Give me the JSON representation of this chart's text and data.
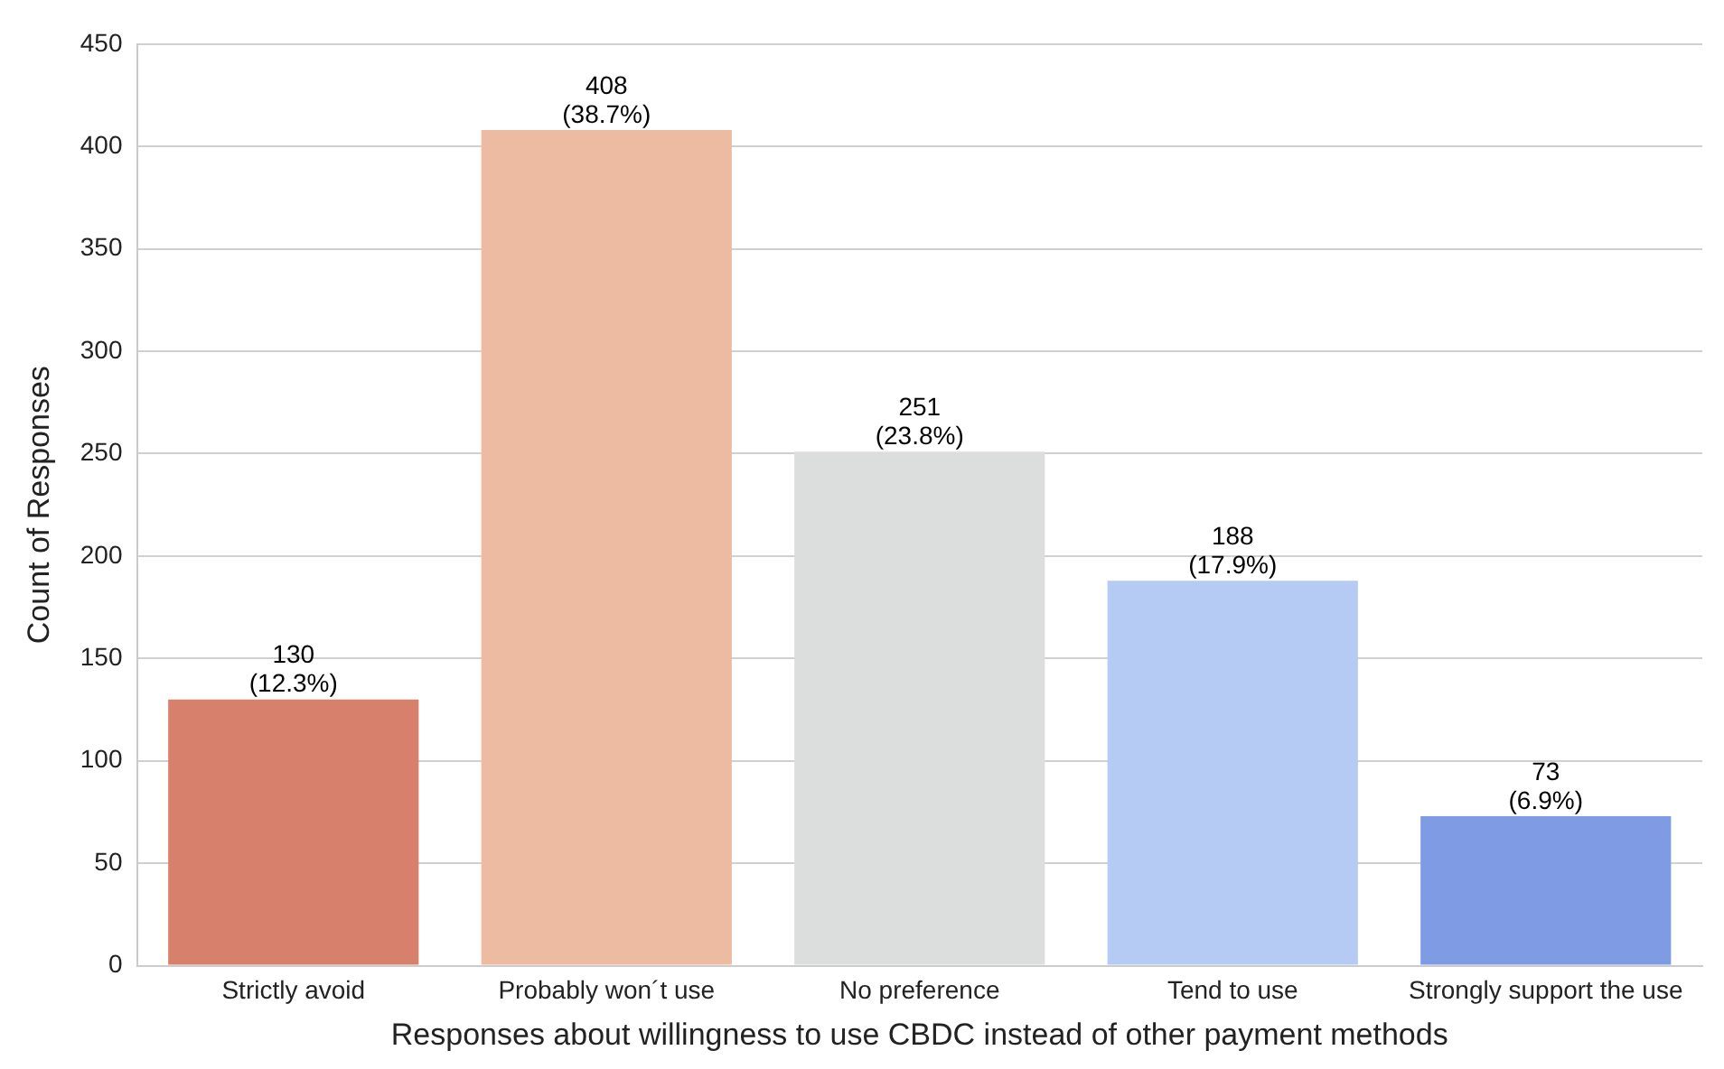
{
  "chart_data": {
    "type": "bar",
    "xlabel": "Responses about willingness to use CBDC instead of other payment methods",
    "ylabel": "Count of Responses",
    "categories": [
      "Strictly avoid",
      "Probably won´t use",
      "No preference",
      "Tend to use",
      "Strongly support the use"
    ],
    "values": [
      130,
      408,
      251,
      188,
      73
    ],
    "colors": [
      "#d7806b",
      "#edbba2",
      "#dcdddd",
      "#b5cbf3",
      "#7f9be3"
    ],
    "value_labels": [
      "130\n(12.3%)",
      "408\n(38.7%)",
      "251\n(23.8%)",
      "188\n(17.9%)",
      "73\n(6.9%)"
    ],
    "ylim": [
      0,
      450
    ],
    "yticks": [
      0,
      50,
      100,
      150,
      200,
      250,
      300,
      350,
      400,
      450
    ],
    "grid": "y",
    "legend": false
  }
}
